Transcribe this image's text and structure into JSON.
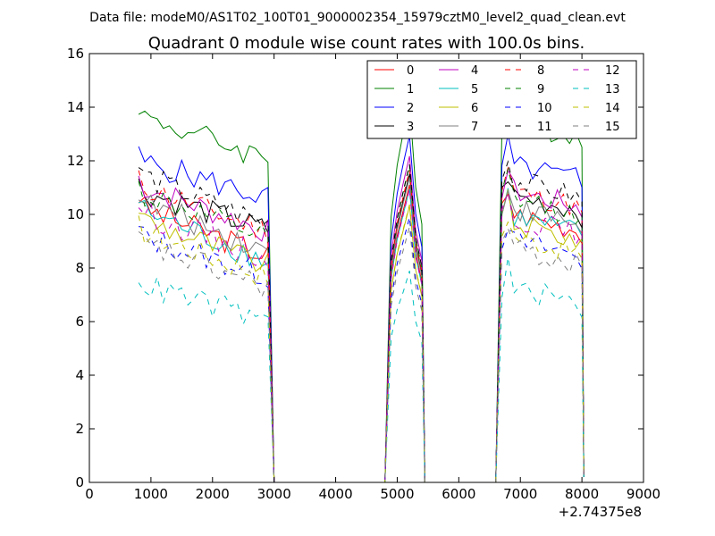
{
  "chart_data": {
    "type": "line",
    "suptitle": "Data file: modeM0/AS1T02_100T01_9000002354_15979cztM0_level2_quad_clean.evt",
    "title": "Quadrant 0 module wise count rates with 100.0s bins.",
    "xlabel": "",
    "ylabel": "",
    "x_offset_label": "+2.74375e8",
    "xlim": [
      0,
      9000
    ],
    "ylim": [
      0,
      16
    ],
    "x_ticks": [
      0,
      1000,
      2000,
      3000,
      4000,
      5000,
      6000,
      7000,
      8000,
      9000
    ],
    "y_ticks": [
      0,
      2,
      4,
      6,
      8,
      10,
      12,
      14,
      16
    ],
    "legend_position": "top-right",
    "legend_columns": 4,
    "bin_seconds": 100,
    "segments": [
      {
        "start": 800,
        "end": 2900,
        "fall": 3000
      },
      {
        "start": 4800,
        "end": 5400,
        "fall": 5450
      },
      {
        "start": 6600,
        "end": 8000,
        "fall": 8030
      }
    ],
    "series": [
      {
        "name": "0",
        "color": "#ff0000",
        "dash": "solid",
        "level": 10.0,
        "decline": 0.16
      },
      {
        "name": "1",
        "color": "#008000",
        "dash": "solid",
        "level": 13.4,
        "decline": 0.14
      },
      {
        "name": "2",
        "color": "#0000ff",
        "dash": "solid",
        "level": 11.7,
        "decline": 0.12
      },
      {
        "name": "3",
        "color": "#000000",
        "dash": "solid",
        "level": 10.6,
        "decline": 0.13
      },
      {
        "name": "4",
        "color": "#bf00bf",
        "dash": "solid",
        "level": 10.8,
        "decline": 0.15
      },
      {
        "name": "5",
        "color": "#00bfbf",
        "dash": "solid",
        "level": 9.9,
        "decline": 0.17
      },
      {
        "name": "6",
        "color": "#bfbf00",
        "dash": "solid",
        "level": 9.6,
        "decline": 0.16
      },
      {
        "name": "7",
        "color": "#808080",
        "dash": "solid",
        "level": 10.2,
        "decline": 0.16
      },
      {
        "name": "8",
        "color": "#ff0000",
        "dash": "dashed",
        "level": 10.8,
        "decline": 0.15
      },
      {
        "name": "9",
        "color": "#008000",
        "dash": "dashed",
        "level": 10.5,
        "decline": 0.15
      },
      {
        "name": "10",
        "color": "#0000ff",
        "dash": "dashed",
        "level": 8.9,
        "decline": 0.13
      },
      {
        "name": "11",
        "color": "#000000",
        "dash": "dashed",
        "level": 11.2,
        "decline": 0.16
      },
      {
        "name": "12",
        "color": "#bf00bf",
        "dash": "dashed",
        "level": 9.8,
        "decline": 0.15
      },
      {
        "name": "13",
        "color": "#00bfbf",
        "dash": "dashed",
        "level": 7.1,
        "decline": 0.12
      },
      {
        "name": "14",
        "color": "#bfbf00",
        "dash": "dashed",
        "level": 9.1,
        "decline": 0.15
      },
      {
        "name": "15",
        "color": "#808080",
        "dash": "dashed",
        "level": 8.6,
        "decline": 0.14
      }
    ]
  }
}
